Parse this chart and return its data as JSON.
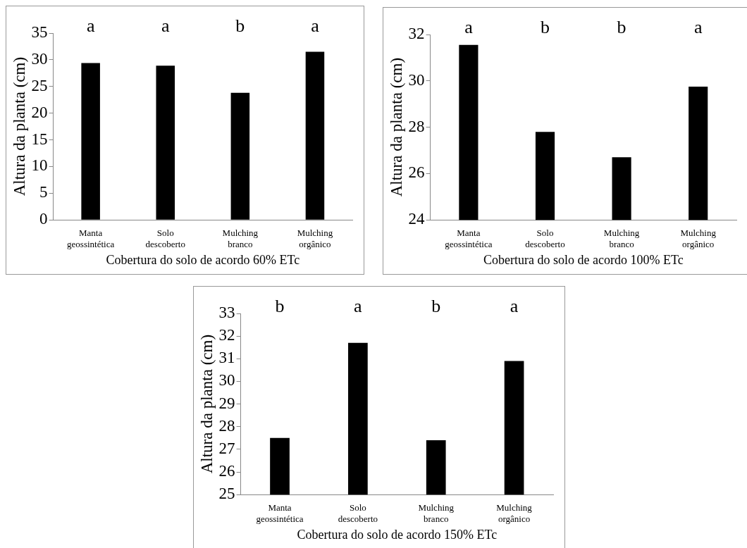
{
  "chart_data": [
    {
      "type": "bar",
      "xlabel": "Cobertura do solo de acordo 60% ETc",
      "ylabel": "Altura da planta (cm)",
      "categories": [
        "Manta geossintética",
        "Solo descoberto",
        "Mulching branco",
        "Mulching orgânico"
      ],
      "values": [
        29.4,
        28.9,
        23.8,
        31.5
      ],
      "color": "#000000",
      "ylim": [
        0,
        35
      ],
      "yticks": [
        0,
        5,
        10,
        15,
        20,
        25,
        30,
        35
      ],
      "annotations": [
        "a",
        "a",
        "b",
        "a"
      ]
    },
    {
      "type": "bar",
      "xlabel": "Cobertura do solo de acordo 100% ETc",
      "ylabel": "Altura da planta (cm)",
      "categories": [
        "Manta geossintética",
        "Solo descoberto",
        "Mulching branco",
        "Mulching orgânico"
      ],
      "values": [
        31.55,
        27.8,
        26.7,
        29.75
      ],
      "color": "#000000",
      "ylim": [
        24,
        32
      ],
      "yticks": [
        24,
        26,
        28,
        30,
        32
      ],
      "annotations": [
        "a",
        "b",
        "b",
        "a"
      ]
    },
    {
      "type": "bar",
      "xlabel": "Cobertura do solo de acordo 150% ETc",
      "ylabel": "Altura da planta (cm)",
      "categories": [
        "Manta geossintética",
        "Solo descoberto",
        "Mulching branco",
        "Mulching orgânico"
      ],
      "values": [
        27.5,
        31.7,
        27.4,
        30.9
      ],
      "color": "#000000",
      "ylim": [
        25,
        33
      ],
      "yticks": [
        25,
        26,
        27,
        28,
        29,
        30,
        31,
        32,
        33
      ],
      "annotations": [
        "b",
        "a",
        "b",
        "a"
      ]
    }
  ]
}
